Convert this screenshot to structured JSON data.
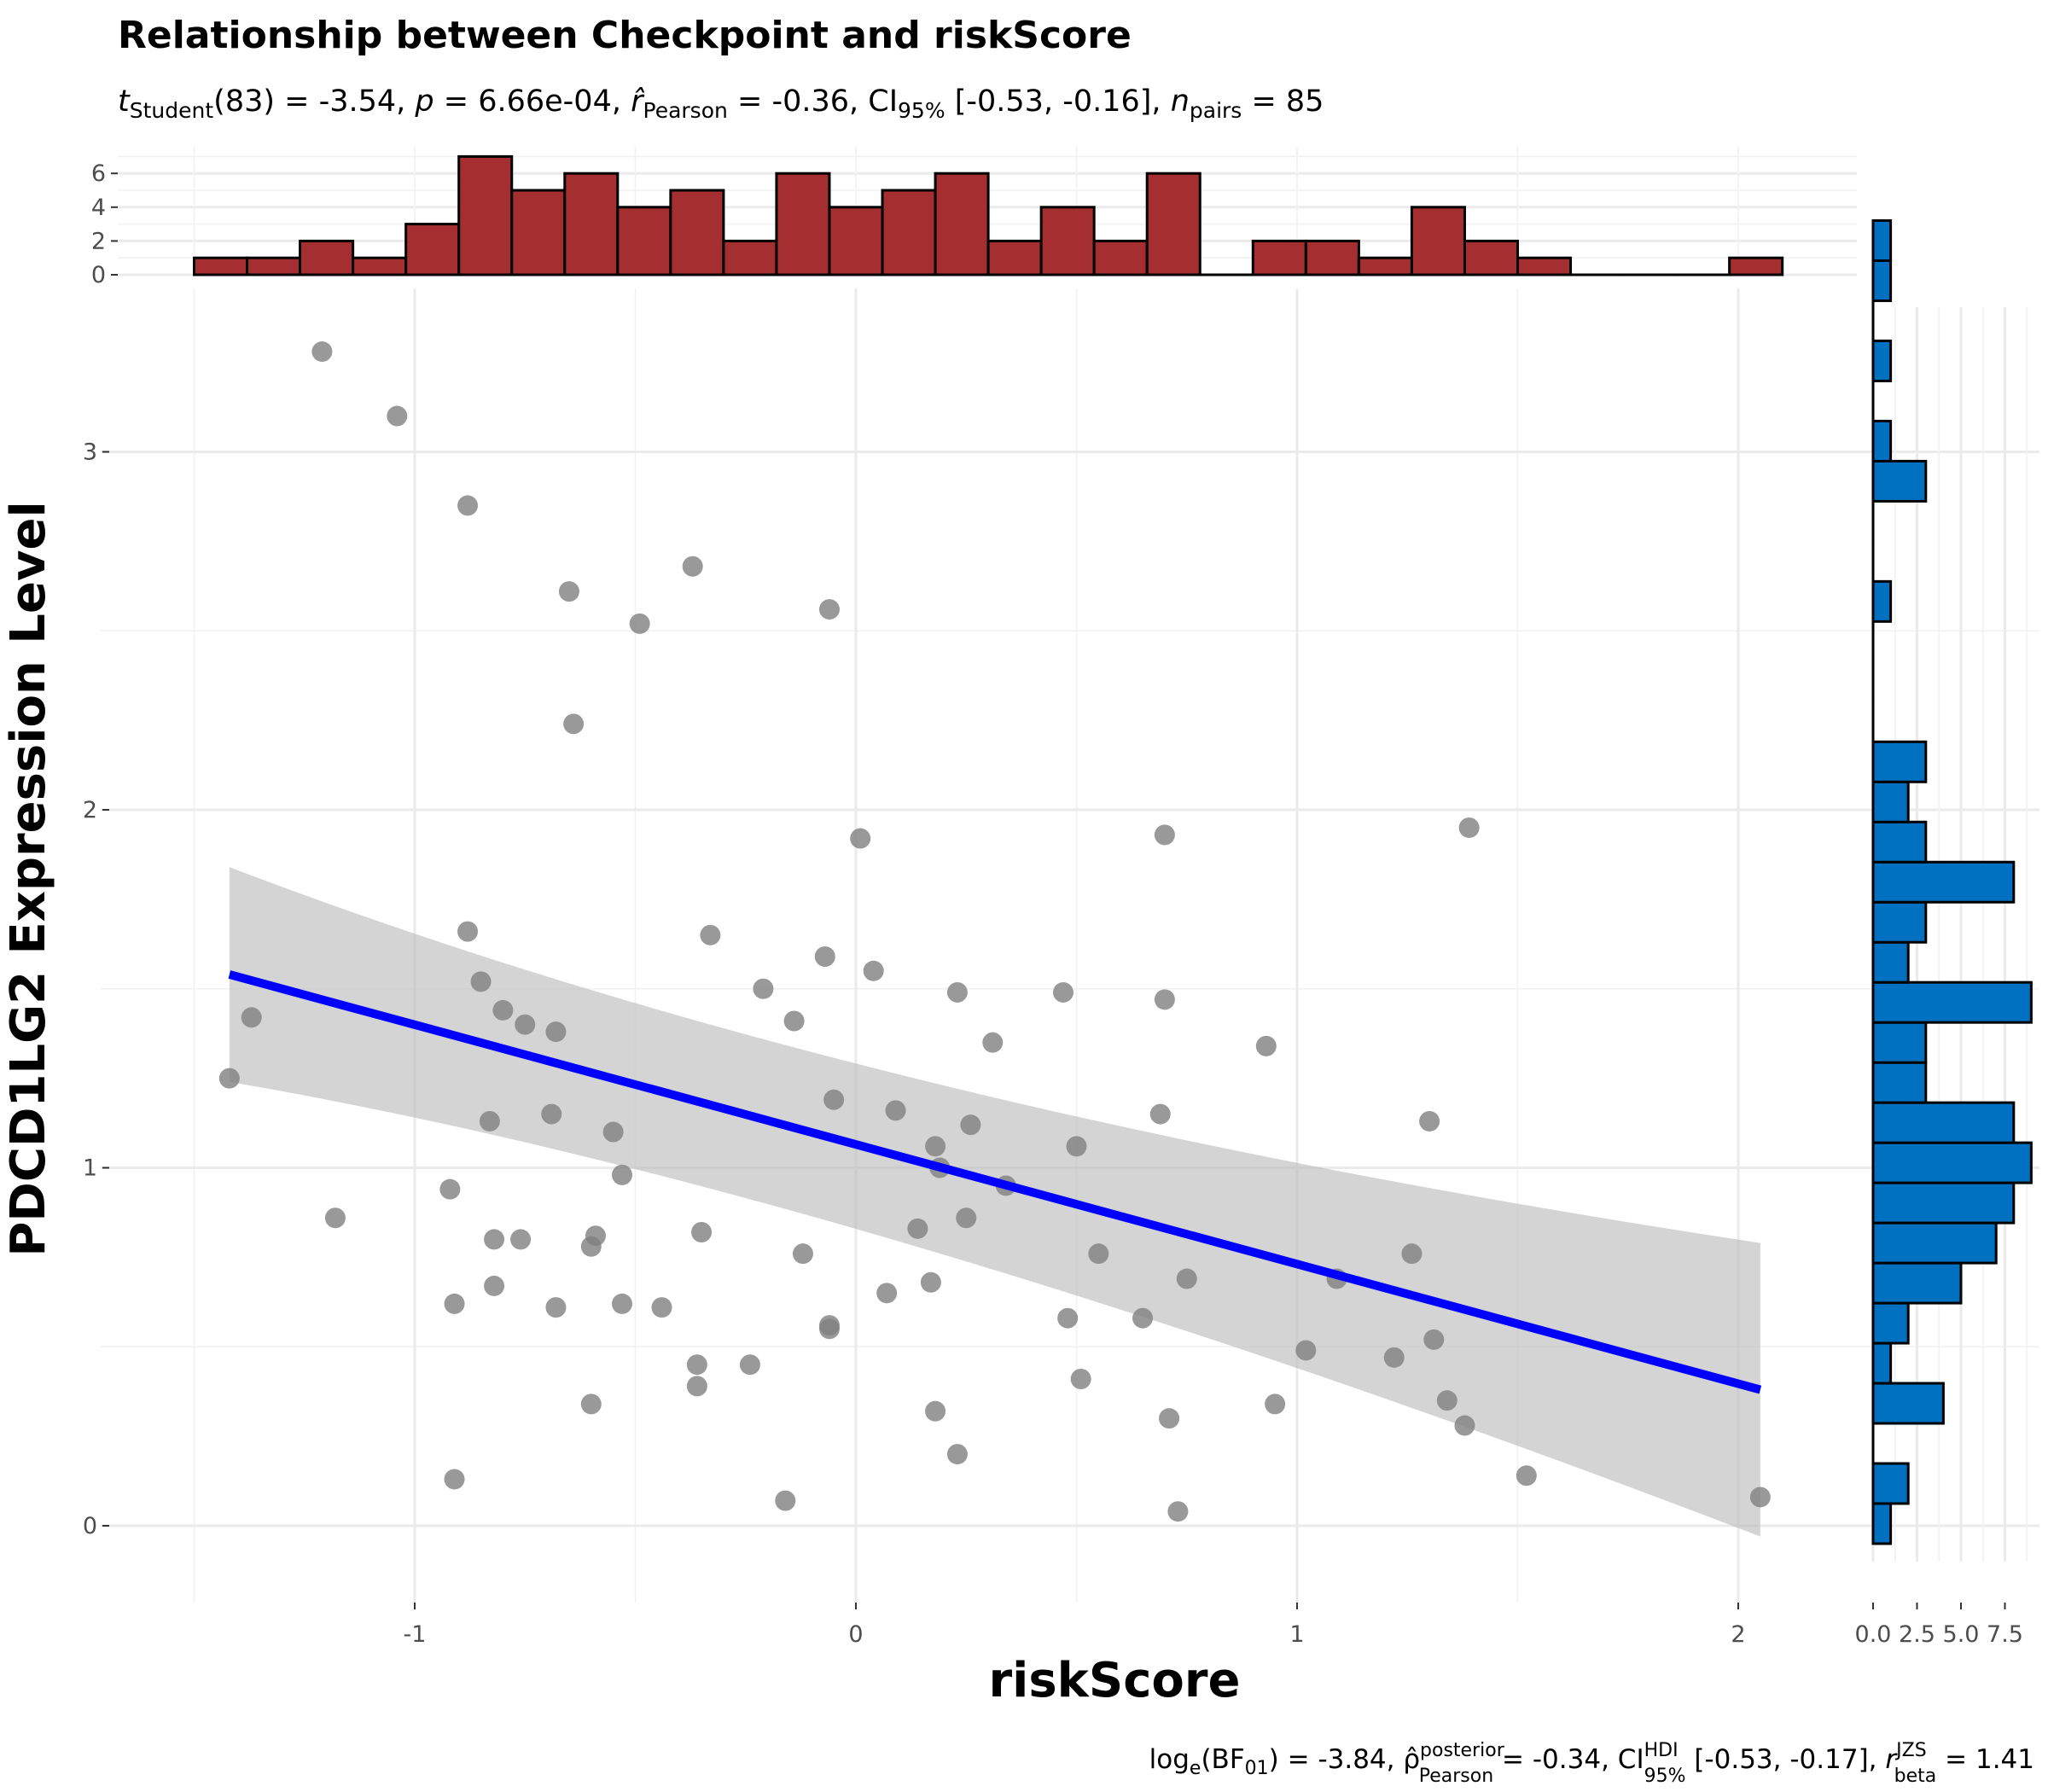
{
  "chart_data": {
    "type": "scatter",
    "title": "Relationship between Checkpoint and riskScore",
    "subtitle": {
      "t_student_df": "83",
      "t_value": "-3.54",
      "p_value": "6.66e-04",
      "r_pearson": "-0.36",
      "ci95": "[-0.53, -0.16]",
      "n_pairs": "85"
    },
    "caption": {
      "log_bf01": "-3.84",
      "rho_posterior": "-0.34",
      "ci95_hdi": "[-0.53, -0.17]",
      "r_beta_jzs": "1.41"
    },
    "xlabel": "riskScore",
    "ylabel": "PDCD1LG2 Expression Level",
    "xlim": [
      -1.5,
      2.1
    ],
    "ylim": [
      -0.2,
      3.3
    ],
    "x_ticks": [
      -1,
      0,
      1,
      2
    ],
    "y_ticks": [
      0,
      1,
      2,
      3
    ],
    "grid": true,
    "points": [
      [
        -1.42,
        1.25
      ],
      [
        -1.37,
        1.42
      ],
      [
        -1.21,
        3.28
      ],
      [
        -1.18,
        0.86
      ],
      [
        -1.04,
        3.1
      ],
      [
        -0.92,
        0.94
      ],
      [
        -0.91,
        0.62
      ],
      [
        -0.91,
        0.13
      ],
      [
        -0.88,
        2.85
      ],
      [
        -0.88,
        1.66
      ],
      [
        -0.85,
        1.52
      ],
      [
        -0.83,
        1.13
      ],
      [
        -0.82,
        0.8
      ],
      [
        -0.82,
        0.67
      ],
      [
        -0.8,
        1.44
      ],
      [
        -0.76,
        0.8
      ],
      [
        -0.75,
        1.4
      ],
      [
        -0.69,
        1.15
      ],
      [
        -0.68,
        0.61
      ],
      [
        -0.68,
        1.38
      ],
      [
        -0.65,
        2.61
      ],
      [
        -0.64,
        2.24
      ],
      [
        -0.6,
        0.78
      ],
      [
        -0.6,
        0.34
      ],
      [
        -0.59,
        0.81
      ],
      [
        -0.55,
        1.1
      ],
      [
        -0.53,
        0.98
      ],
      [
        -0.53,
        0.62
      ],
      [
        -0.49,
        2.52
      ],
      [
        -0.44,
        0.61
      ],
      [
        -0.37,
        2.68
      ],
      [
        -0.36,
        0.45
      ],
      [
        -0.36,
        0.39
      ],
      [
        -0.35,
        0.82
      ],
      [
        -0.33,
        1.65
      ],
      [
        -0.24,
        0.45
      ],
      [
        -0.21,
        1.5
      ],
      [
        -0.16,
        0.07
      ],
      [
        -0.14,
        1.41
      ],
      [
        -0.12,
        0.76
      ],
      [
        -0.07,
        1.59
      ],
      [
        -0.06,
        2.56
      ],
      [
        -0.06,
        0.56
      ],
      [
        -0.06,
        0.55
      ],
      [
        -0.05,
        1.19
      ],
      [
        0.01,
        1.92
      ],
      [
        0.04,
        1.55
      ],
      [
        0.07,
        0.65
      ],
      [
        0.09,
        1.16
      ],
      [
        0.14,
        0.83
      ],
      [
        0.17,
        0.68
      ],
      [
        0.18,
        1.06
      ],
      [
        0.18,
        0.32
      ],
      [
        0.19,
        1.0
      ],
      [
        0.23,
        1.49
      ],
      [
        0.23,
        0.2
      ],
      [
        0.25,
        0.86
      ],
      [
        0.26,
        1.12
      ],
      [
        0.31,
        1.35
      ],
      [
        0.34,
        0.95
      ],
      [
        0.47,
        1.49
      ],
      [
        0.48,
        0.58
      ],
      [
        0.5,
        1.06
      ],
      [
        0.51,
        0.41
      ],
      [
        0.55,
        0.76
      ],
      [
        0.65,
        0.58
      ],
      [
        0.69,
        1.15
      ],
      [
        0.7,
        1.93
      ],
      [
        0.7,
        1.47
      ],
      [
        0.71,
        0.3
      ],
      [
        0.73,
        0.04
      ],
      [
        0.75,
        0.69
      ],
      [
        0.93,
        1.34
      ],
      [
        0.95,
        0.34
      ],
      [
        1.02,
        0.49
      ],
      [
        1.09,
        0.69
      ],
      [
        1.22,
        0.47
      ],
      [
        1.26,
        0.76
      ],
      [
        1.3,
        1.13
      ],
      [
        1.31,
        0.52
      ],
      [
        1.34,
        0.35
      ],
      [
        1.38,
        0.28
      ],
      [
        1.39,
        1.95
      ],
      [
        1.52,
        0.14
      ],
      [
        2.05,
        0.08
      ]
    ],
    "regression": {
      "x_range": [
        -1.42,
        2.05
      ],
      "y_start": 1.54,
      "y_end": 0.38,
      "ci_lower_start": 1.24,
      "ci_upper_start": 1.84,
      "ci_lower_mid": 0.94,
      "ci_upper_mid": 1.17,
      "x_mid": 0.0,
      "ci_lower_end": -0.03,
      "ci_upper_end": 0.79
    },
    "colors": {
      "points": "#7f7f7f",
      "line": "#0000ff",
      "band": "#bdbdbd",
      "top_hist": "#a52f30",
      "side_hist": "#0070c0"
    },
    "top_histogram": {
      "bin_start": -1.5,
      "bin_width": 0.12,
      "counts": [
        1,
        1,
        2,
        1,
        3,
        7,
        5,
        6,
        4,
        5,
        2,
        6,
        4,
        5,
        6,
        2,
        4,
        2,
        6,
        0,
        2,
        2,
        1,
        4,
        2,
        1,
        0,
        0,
        0,
        1
      ],
      "y_ticks": [
        0,
        2,
        4,
        6
      ]
    },
    "side_histogram": {
      "bin_start": -0.05,
      "bin_width": 0.112,
      "counts": [
        1,
        2,
        0,
        4,
        1,
        2,
        5,
        7,
        8,
        9,
        8,
        3,
        3,
        9,
        2,
        3,
        8,
        3,
        2,
        3,
        0,
        0,
        0,
        1,
        0,
        0,
        3,
        1,
        0,
        1,
        0,
        1,
        1
      ],
      "x_ticks": [
        0.0,
        2.5,
        5.0,
        7.5
      ],
      "x_tick_labels": [
        "0.0",
        "2.5",
        "5.0",
        "7.5"
      ]
    }
  }
}
